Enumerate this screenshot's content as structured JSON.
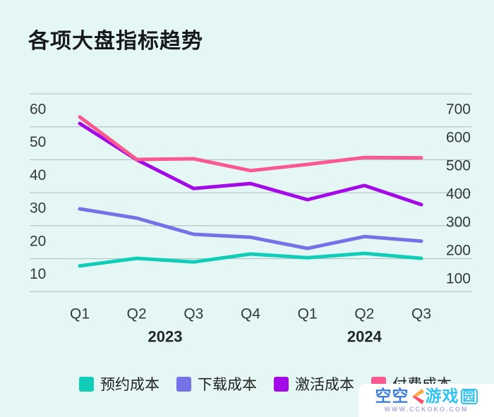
{
  "page": {
    "background": "#E4F7F4"
  },
  "title": "各项大盘指标趋势",
  "chart_data": {
    "type": "line",
    "title": "各项大盘指标趋势",
    "categories": [
      "Q1",
      "Q2",
      "Q3",
      "Q4",
      "Q1",
      "Q2",
      "Q3"
    ],
    "year_groups": [
      {
        "label": "2023",
        "from": 0,
        "to": 3
      },
      {
        "label": "2024",
        "from": 4,
        "to": 6
      }
    ],
    "left_axis": {
      "ticks": [
        60,
        50,
        40,
        30,
        20,
        10
      ],
      "range": [
        0,
        60
      ]
    },
    "right_axis": {
      "ticks": [
        700,
        600,
        500,
        400,
        300,
        200,
        100
      ],
      "range": [
        100,
        700
      ]
    },
    "grid": true,
    "legend_position": "bottom",
    "series": [
      {
        "name": "预约成本",
        "color": "#0FCDB8",
        "axis": "left",
        "values": [
          7.8,
          10.1,
          9.0,
          11.4,
          10.3,
          11.6,
          10.1
        ]
      },
      {
        "name": "下载成本",
        "color": "#7571E6",
        "axis": "left",
        "values": [
          25.1,
          22.3,
          17.4,
          16.5,
          13.1,
          16.7,
          15.3
        ]
      },
      {
        "name": "激活成本",
        "color": "#A30AE8",
        "axis": "right",
        "values": [
          610,
          500,
          413,
          428,
          379,
          422,
          364
        ]
      },
      {
        "name": "付费成本",
        "color": "#FA5990",
        "axis": "right",
        "values": [
          630,
          501,
          503,
          467,
          486,
          507,
          506
        ]
      }
    ],
    "style": {
      "grid_color": "#9AA7AB",
      "tick_color": "#33383C",
      "line_width": 5
    }
  },
  "watermark": {
    "brand_prefix": "空空",
    "brand_suffix": "游戏",
    "brand_boxed": "园",
    "url": "WWW.CCKOKO.COM",
    "logo_colors": {
      "top": "#FFA640",
      "bottom": "#FF4E6B"
    }
  }
}
